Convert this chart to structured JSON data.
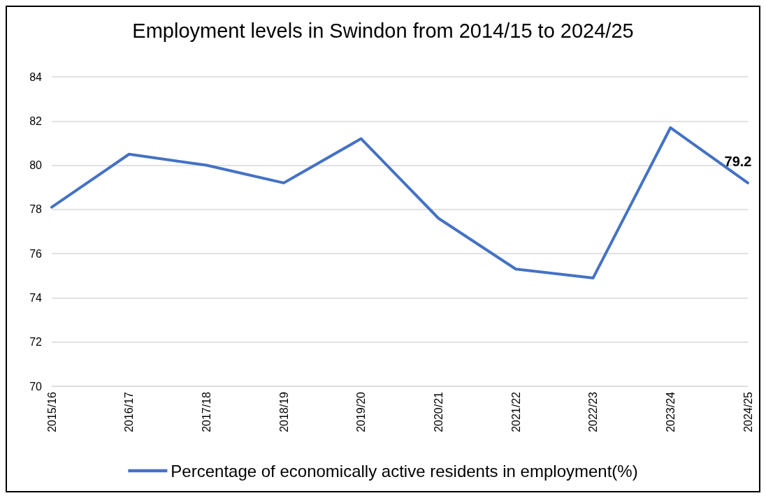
{
  "chart_data": {
    "type": "line",
    "title": "Employment levels in Swindon from 2014/15 to 2024/25",
    "categories": [
      "2015/16",
      "2016/17",
      "2017/18",
      "2018/19",
      "2019/20",
      "2020/21",
      "2021/22",
      "2022/23",
      "2023/24",
      "2024/25"
    ],
    "series": [
      {
        "name": "Percentage of economically active residents in employment(%)",
        "color": "#4472c4",
        "values": [
          78.1,
          80.5,
          80.0,
          79.2,
          81.2,
          77.6,
          75.3,
          74.9,
          81.7,
          79.2
        ],
        "value_labels": [
          null,
          null,
          null,
          null,
          null,
          null,
          null,
          null,
          null,
          "79.2"
        ]
      }
    ],
    "ylim": [
      70,
      84
    ],
    "yticks": [
      70,
      72,
      74,
      76,
      78,
      80,
      82,
      84
    ],
    "grid": "y",
    "legend": "bottom"
  }
}
